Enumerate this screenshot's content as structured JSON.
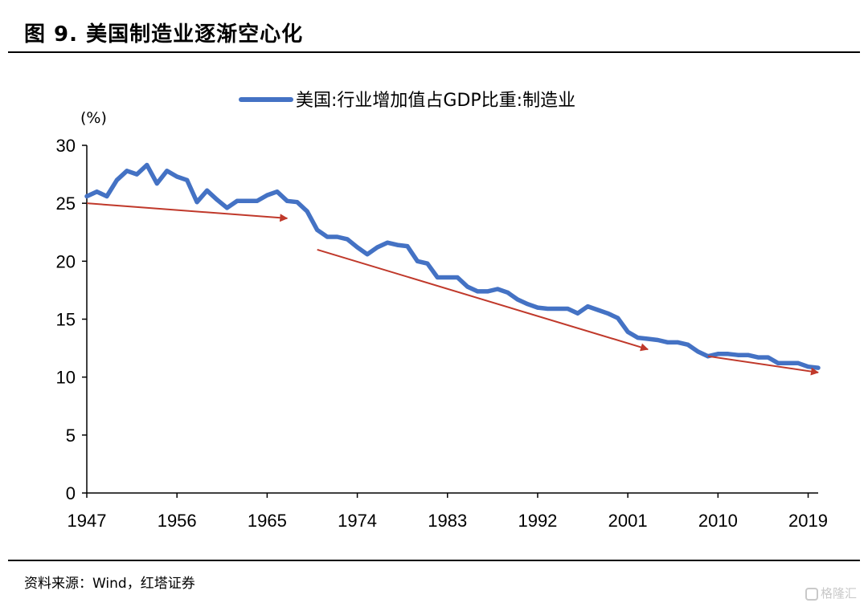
{
  "figure": {
    "title": "图 9. 美国制造业逐渐空心化",
    "source": "资料来源：Wind，红塔证券",
    "watermark": "格隆汇"
  },
  "chart_data": {
    "type": "line",
    "title": "",
    "xlabel": "",
    "ylabel": "(%)",
    "ylim": [
      0,
      30
    ],
    "yticks": [
      0,
      5,
      10,
      15,
      20,
      25,
      30
    ],
    "xlim": [
      1947,
      2020
    ],
    "xticks": [
      1947,
      1956,
      1965,
      1974,
      1983,
      1992,
      2001,
      2010,
      2019
    ],
    "grid": false,
    "legend": "top-center",
    "line_color": "#4472C4",
    "arrow_color": "#C0392B",
    "series": [
      {
        "name": "美国:行业增加值占GDP比重:制造业",
        "x": [
          1947,
          1948,
          1949,
          1950,
          1951,
          1952,
          1953,
          1954,
          1955,
          1956,
          1957,
          1958,
          1959,
          1960,
          1961,
          1962,
          1963,
          1964,
          1965,
          1966,
          1967,
          1968,
          1969,
          1970,
          1971,
          1972,
          1973,
          1974,
          1975,
          1976,
          1977,
          1978,
          1979,
          1980,
          1981,
          1982,
          1983,
          1984,
          1985,
          1986,
          1987,
          1988,
          1989,
          1990,
          1991,
          1992,
          1993,
          1994,
          1995,
          1996,
          1997,
          1998,
          1999,
          2000,
          2001,
          2002,
          2003,
          2004,
          2005,
          2006,
          2007,
          2008,
          2009,
          2010,
          2011,
          2012,
          2013,
          2014,
          2015,
          2016,
          2017,
          2018,
          2019,
          2020
        ],
        "values": [
          25.6,
          26.0,
          25.6,
          27.0,
          27.8,
          27.5,
          28.3,
          26.7,
          27.8,
          27.3,
          27.0,
          25.1,
          26.1,
          25.3,
          24.6,
          25.2,
          25.2,
          25.2,
          25.7,
          26.0,
          25.2,
          25.1,
          24.3,
          22.7,
          22.1,
          22.1,
          21.9,
          21.2,
          20.6,
          21.2,
          21.6,
          21.4,
          21.3,
          20.0,
          19.8,
          18.6,
          18.6,
          18.6,
          17.8,
          17.4,
          17.4,
          17.6,
          17.3,
          16.7,
          16.3,
          16.0,
          15.9,
          15.9,
          15.9,
          15.5,
          16.1,
          15.8,
          15.5,
          15.1,
          13.9,
          13.4,
          13.3,
          13.2,
          13.0,
          13.0,
          12.8,
          12.2,
          11.8,
          12.0,
          12.0,
          11.9,
          11.9,
          11.7,
          11.7,
          11.2,
          11.2,
          11.2,
          10.9,
          10.8
        ]
      }
    ],
    "trend_arrows": [
      {
        "from": [
          1947,
          25.0
        ],
        "to": [
          1967,
          23.7
        ]
      },
      {
        "from": [
          1970,
          21.0
        ],
        "to": [
          2003,
          12.4
        ]
      },
      {
        "from": [
          2009,
          11.8
        ],
        "to": [
          2020,
          10.4
        ]
      }
    ]
  }
}
